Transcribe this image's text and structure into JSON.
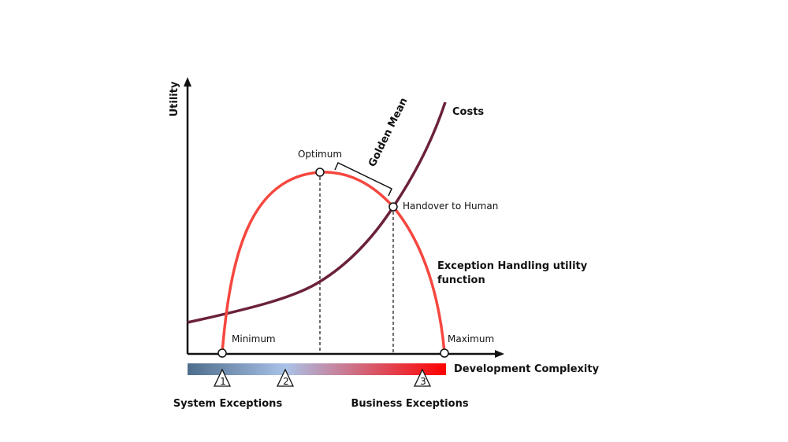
{
  "axis": {
    "y_label": "Utility",
    "x_label": "Development Complexity"
  },
  "curves": {
    "costs": "Costs",
    "utility": [
      "Exception Handling utility",
      "function"
    ]
  },
  "points": {
    "optimum": "Optimum",
    "handover": "Handover to Human",
    "minimum": "Minimum",
    "maximum": "Maximum"
  },
  "golden_mean": "Golden Mean",
  "markers": [
    "1",
    "2",
    "3"
  ],
  "exceptions": {
    "system": "System Exceptions",
    "business": "Business Exceptions"
  }
}
